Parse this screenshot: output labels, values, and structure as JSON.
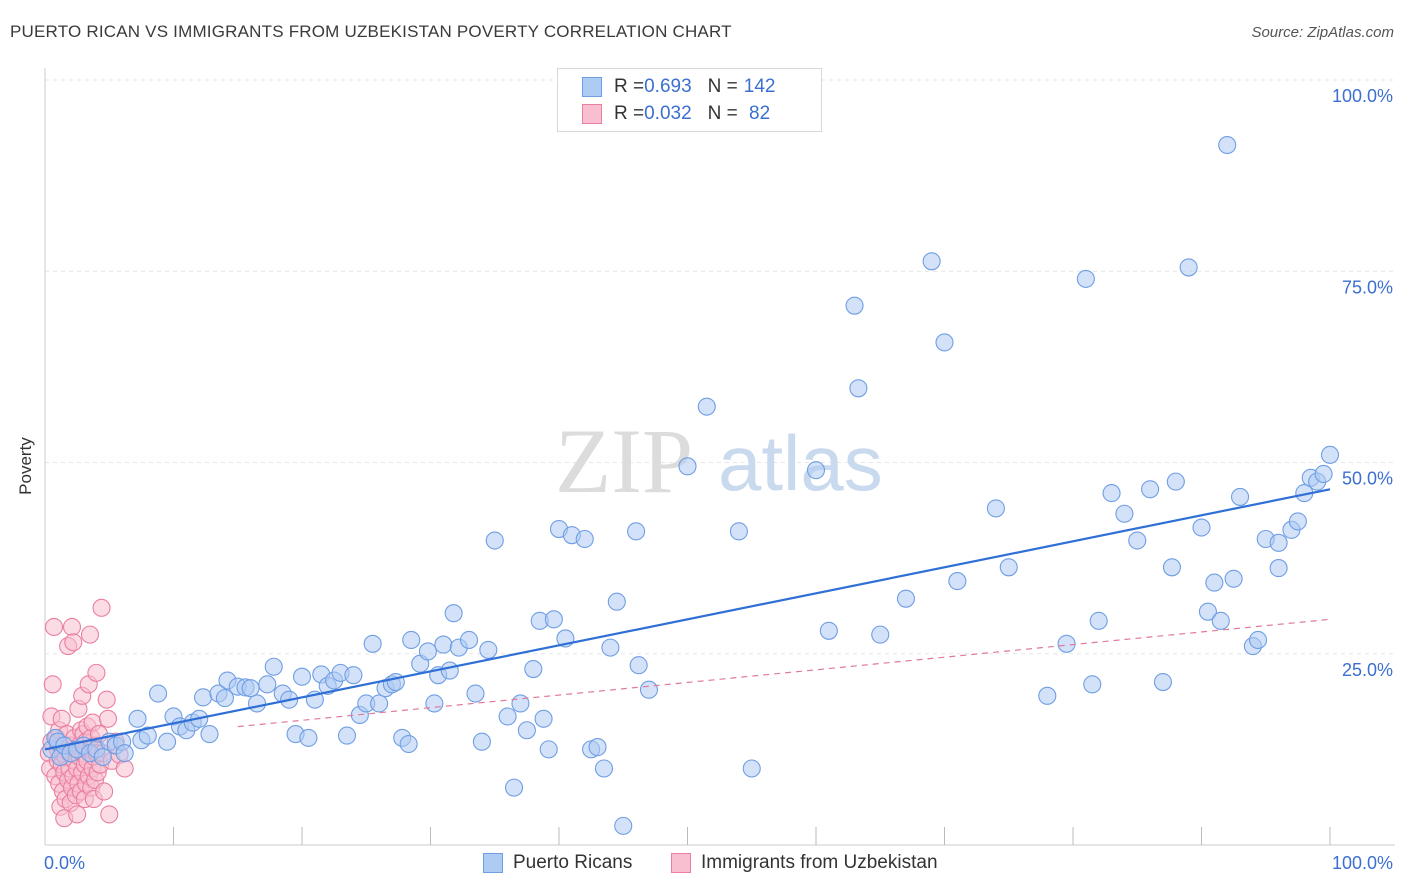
{
  "header": {
    "title": "PUERTO RICAN VS IMMIGRANTS FROM UZBEKISTAN POVERTY CORRELATION CHART",
    "source": "Source: ZipAtlas.com"
  },
  "watermark": {
    "zip": "ZIP",
    "atlas": "atlas"
  },
  "legend": {
    "rows": [
      {
        "r_label": "R = ",
        "r_value": "0.693",
        "n_label": "N = ",
        "n_value": "142",
        "color": "#aecbf4",
        "border": "#6f9ee3"
      },
      {
        "r_label": "R = ",
        "r_value": "0.032",
        "n_label": "N = ",
        "n_value": " 82",
        "color": "#f7bfd0",
        "border": "#ea7fa0"
      }
    ]
  },
  "bottom_legend": {
    "items": [
      {
        "label": "Puerto Ricans",
        "color": "#aecbf4",
        "border": "#6f9ee3"
      },
      {
        "label": "Immigrants from Uzbekistan",
        "color": "#f7bfd0",
        "border": "#ea7fa0"
      }
    ]
  },
  "chart_data": {
    "type": "scatter",
    "title": "PUERTO RICAN VS IMMIGRANTS FROM UZBEKISTAN POVERTY CORRELATION CHART",
    "xlabel": "",
    "ylabel": "Poverty",
    "xlim": [
      0,
      100
    ],
    "ylim": [
      0,
      100
    ],
    "x_tick_labels": [
      "0.0%",
      "100.0%"
    ],
    "y_tick_labels": [
      "25.0%",
      "50.0%",
      "75.0%",
      "100.0%"
    ],
    "y_ticks": [
      25,
      50,
      75,
      100
    ],
    "grid": true,
    "legend_position": "top-center",
    "series": [
      {
        "name": "Puerto Ricans",
        "color": "#aecbf4",
        "stroke": "#6f9ee3",
        "trend": {
          "x": [
            0,
            100
          ],
          "y": [
            12.5,
            46.5
          ],
          "color": "#2f6fd6",
          "style": "solid"
        },
        "points": [
          [
            0.5,
            12.5
          ],
          [
            0.8,
            14
          ],
          [
            1,
            13.5
          ],
          [
            1.2,
            11.5
          ],
          [
            1.5,
            13
          ],
          [
            2,
            12
          ],
          [
            2.5,
            12.5
          ],
          [
            3,
            13
          ],
          [
            3.5,
            12
          ],
          [
            4,
            12.5
          ],
          [
            4.5,
            11.5
          ],
          [
            5,
            13.5
          ],
          [
            5.5,
            13
          ],
          [
            6,
            13.5
          ],
          [
            6.2,
            12
          ],
          [
            7.2,
            16.5
          ],
          [
            7.5,
            13.7
          ],
          [
            8,
            14.3
          ],
          [
            8.8,
            19.8
          ],
          [
            9.5,
            13.5
          ],
          [
            10,
            16.8
          ],
          [
            10.5,
            15.5
          ],
          [
            11,
            15
          ],
          [
            11.5,
            16
          ],
          [
            12,
            16.5
          ],
          [
            12.3,
            19.3
          ],
          [
            12.8,
            14.5
          ],
          [
            13.5,
            19.8
          ],
          [
            14,
            19.2
          ],
          [
            14.2,
            21.5
          ],
          [
            15,
            20.7
          ],
          [
            15.6,
            20.6
          ],
          [
            16,
            20.5
          ],
          [
            16.5,
            18.5
          ],
          [
            17.3,
            21
          ],
          [
            17.8,
            23.3
          ],
          [
            18.5,
            19.8
          ],
          [
            19,
            19
          ],
          [
            19.5,
            14.5
          ],
          [
            20,
            22
          ],
          [
            20.5,
            14
          ],
          [
            21,
            19
          ],
          [
            21.5,
            22.3
          ],
          [
            22,
            20.8
          ],
          [
            22.5,
            21.5
          ],
          [
            23,
            22.5
          ],
          [
            23.5,
            14.3
          ],
          [
            24,
            22.2
          ],
          [
            24.5,
            17
          ],
          [
            25,
            18.5
          ],
          [
            25.5,
            26.3
          ],
          [
            26,
            18.5
          ],
          [
            26.5,
            20.5
          ],
          [
            27,
            21
          ],
          [
            27.3,
            21.3
          ],
          [
            27.8,
            14
          ],
          [
            28.3,
            13.2
          ],
          [
            28.5,
            26.8
          ],
          [
            29.2,
            23.7
          ],
          [
            29.8,
            25.3
          ],
          [
            30.3,
            18.5
          ],
          [
            30.6,
            22.2
          ],
          [
            31,
            26.2
          ],
          [
            31.5,
            22.8
          ],
          [
            31.8,
            30.3
          ],
          [
            32.2,
            25.8
          ],
          [
            33,
            26.8
          ],
          [
            33.5,
            19.8
          ],
          [
            34,
            13.5
          ],
          [
            34.5,
            25.5
          ],
          [
            35,
            39.8
          ],
          [
            36,
            16.8
          ],
          [
            36.5,
            7.5
          ],
          [
            37,
            18.5
          ],
          [
            37.5,
            15
          ],
          [
            38,
            23
          ],
          [
            38.5,
            29.3
          ],
          [
            38.8,
            16.5
          ],
          [
            39.2,
            12.5
          ],
          [
            39.6,
            29.5
          ],
          [
            40,
            41.3
          ],
          [
            40.5,
            27
          ],
          [
            41,
            40.5
          ],
          [
            42,
            40
          ],
          [
            42.5,
            12.5
          ],
          [
            43,
            12.8
          ],
          [
            43.5,
            10
          ],
          [
            44,
            25.8
          ],
          [
            44.5,
            31.8
          ],
          [
            45,
            2.5
          ],
          [
            46,
            41
          ],
          [
            46.2,
            23.5
          ],
          [
            47,
            20.3
          ],
          [
            50,
            49.5
          ],
          [
            51.5,
            57.3
          ],
          [
            54,
            41
          ],
          [
            55,
            10
          ],
          [
            60,
            49
          ],
          [
            61,
            28
          ],
          [
            63,
            70.5
          ],
          [
            63.3,
            59.7
          ],
          [
            65,
            27.5
          ],
          [
            67,
            32.2
          ],
          [
            69,
            76.3
          ],
          [
            70,
            65.7
          ],
          [
            71,
            34.5
          ],
          [
            74,
            44
          ],
          [
            75,
            36.3
          ],
          [
            78,
            19.5
          ],
          [
            79.5,
            26.3
          ],
          [
            81,
            74
          ],
          [
            81.5,
            21
          ],
          [
            82,
            29.3
          ],
          [
            83,
            46
          ],
          [
            84,
            43.3
          ],
          [
            85,
            39.8
          ],
          [
            86,
            46.5
          ],
          [
            87,
            21.3
          ],
          [
            87.7,
            36.3
          ],
          [
            88,
            47.5
          ],
          [
            89,
            75.5
          ],
          [
            90,
            41.5
          ],
          [
            90.5,
            30.5
          ],
          [
            91,
            34.3
          ],
          [
            91.5,
            29.3
          ],
          [
            92,
            91.5
          ],
          [
            92.5,
            34.8
          ],
          [
            93,
            45.5
          ],
          [
            94,
            26
          ],
          [
            94.4,
            26.8
          ],
          [
            95,
            40
          ],
          [
            96,
            36.2
          ],
          [
            96,
            39.5
          ],
          [
            97,
            41.2
          ],
          [
            97.5,
            42.3
          ],
          [
            98,
            46
          ],
          [
            98.5,
            48
          ],
          [
            99,
            47.5
          ],
          [
            99.5,
            48.5
          ],
          [
            100,
            51
          ]
        ]
      },
      {
        "name": "Immigrants from Uzbekistan",
        "color": "#f7bfd0",
        "stroke": "#ea7fa0",
        "trend": {
          "x": [
            0,
            100
          ],
          "y": [
            13,
            29.5
          ],
          "color": "#e0799a",
          "style": "dashed"
        },
        "points": [
          [
            0.3,
            12
          ],
          [
            0.4,
            10
          ],
          [
            0.5,
            13.5
          ],
          [
            0.5,
            16.8
          ],
          [
            0.6,
            21
          ],
          [
            0.7,
            28.5
          ],
          [
            0.8,
            9
          ],
          [
            0.9,
            14
          ],
          [
            1,
            11
          ],
          [
            1,
            12.5
          ],
          [
            1.1,
            8
          ],
          [
            1.1,
            15
          ],
          [
            1.2,
            5
          ],
          [
            1.2,
            13
          ],
          [
            1.3,
            10.5
          ],
          [
            1.3,
            16.5
          ],
          [
            1.4,
            7
          ],
          [
            1.4,
            12
          ],
          [
            1.5,
            3.5
          ],
          [
            1.5,
            9.5
          ],
          [
            1.6,
            6
          ],
          [
            1.6,
            11.5
          ],
          [
            1.7,
            14.5
          ],
          [
            1.8,
            8.5
          ],
          [
            1.8,
            26
          ],
          [
            1.9,
            10
          ],
          [
            1.9,
            12
          ],
          [
            2,
            5.5
          ],
          [
            2,
            13
          ],
          [
            2.1,
            7.5
          ],
          [
            2.1,
            28.5
          ],
          [
            2.2,
            9
          ],
          [
            2.2,
            26.5
          ],
          [
            2.3,
            11
          ],
          [
            2.3,
            14
          ],
          [
            2.4,
            6.5
          ],
          [
            2.4,
            12.5
          ],
          [
            2.5,
            4
          ],
          [
            2.5,
            10
          ],
          [
            2.6,
            8
          ],
          [
            2.6,
            17.8
          ],
          [
            2.7,
            11.5
          ],
          [
            2.7,
            13
          ],
          [
            2.8,
            7
          ],
          [
            2.8,
            15
          ],
          [
            2.9,
            9.5
          ],
          [
            2.9,
            19.5
          ],
          [
            3,
            12
          ],
          [
            3,
            14.5
          ],
          [
            3.1,
            6
          ],
          [
            3.1,
            10.5
          ],
          [
            3.2,
            8
          ],
          [
            3.2,
            13.5
          ],
          [
            3.3,
            11
          ],
          [
            3.3,
            15.5
          ],
          [
            3.4,
            9
          ],
          [
            3.4,
            21
          ],
          [
            3.5,
            12.5
          ],
          [
            3.5,
            27.5
          ],
          [
            3.6,
            7.5
          ],
          [
            3.6,
            14
          ],
          [
            3.7,
            10
          ],
          [
            3.7,
            16
          ],
          [
            3.8,
            6
          ],
          [
            3.8,
            11.5
          ],
          [
            3.9,
            13
          ],
          [
            3.9,
            8.5
          ],
          [
            4,
            22.5
          ],
          [
            4,
            12
          ],
          [
            4.1,
            9.5
          ],
          [
            4.2,
            14.5
          ],
          [
            4.3,
            10.5
          ],
          [
            4.4,
            31
          ],
          [
            4.5,
            12
          ],
          [
            4.6,
            7
          ],
          [
            4.8,
            19
          ],
          [
            4.9,
            16.5
          ],
          [
            5,
            4
          ],
          [
            5.2,
            11
          ],
          [
            5.5,
            13.5
          ],
          [
            5.8,
            11.8
          ],
          [
            6.2,
            10
          ]
        ]
      }
    ]
  }
}
